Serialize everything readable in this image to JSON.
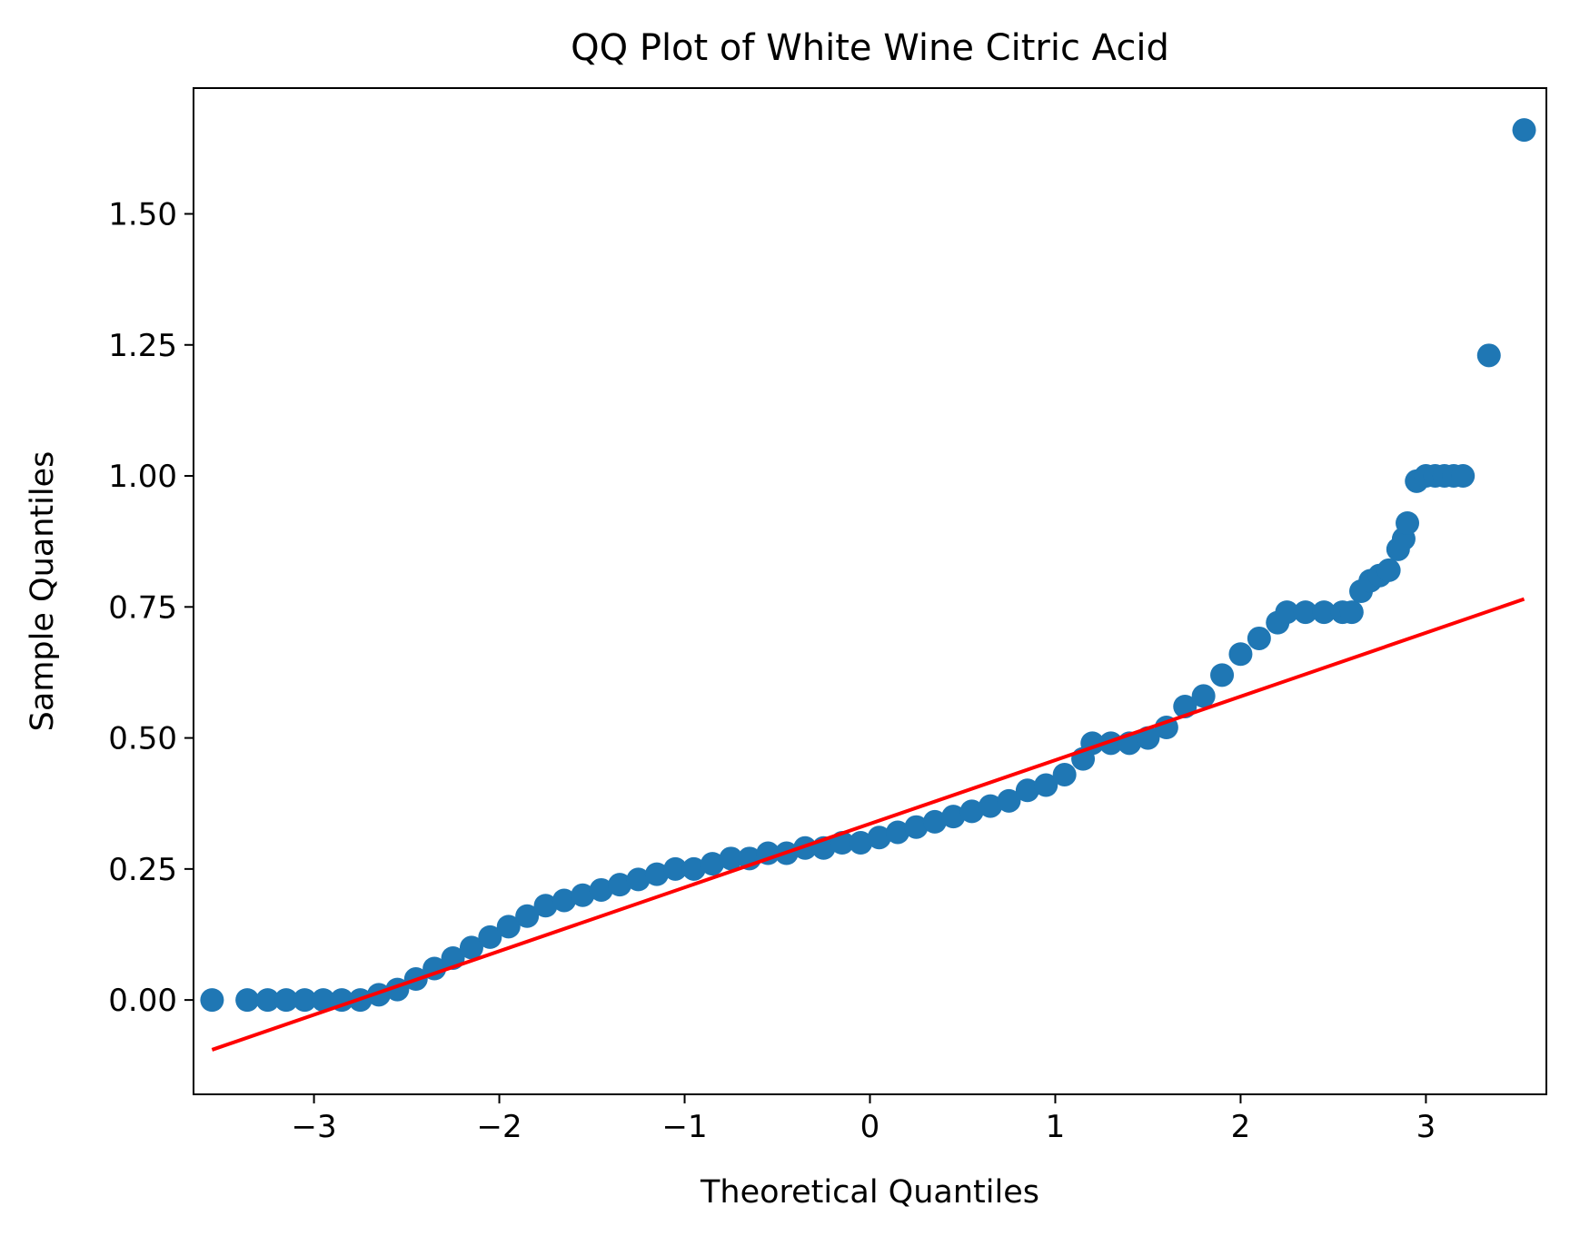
{
  "chart_data": {
    "type": "scatter",
    "title": "QQ Plot of White Wine Citric Acid",
    "xlabel": "Theoretical Quantiles",
    "ylabel": "Sample Quantiles",
    "xlim": [
      -3.65,
      3.65
    ],
    "ylim": [
      -0.18,
      1.74
    ],
    "xticks": [
      -3,
      -2,
      -1,
      0,
      1,
      2,
      3
    ],
    "xtick_labels": [
      "−3",
      "−2",
      "−1",
      "0",
      "1",
      "2",
      "3"
    ],
    "yticks": [
      0.0,
      0.25,
      0.5,
      0.75,
      1.0,
      1.25,
      1.5
    ],
    "ytick_labels": [
      "0.00",
      "0.25",
      "0.50",
      "0.75",
      "1.00",
      "1.25",
      "1.50"
    ],
    "grid": false,
    "series": [
      {
        "role": "sample",
        "color": "#1f77b4",
        "x": [
          -3.55,
          -3.36,
          -3.25,
          -3.15,
          -3.05,
          -2.95,
          -2.85,
          -2.75,
          -2.65,
          -2.55,
          -2.45,
          -2.35,
          -2.25,
          -2.15,
          -2.05,
          -1.95,
          -1.85,
          -1.75,
          -1.65,
          -1.55,
          -1.45,
          -1.35,
          -1.25,
          -1.15,
          -1.05,
          -0.95,
          -0.85,
          -0.75,
          -0.65,
          -0.55,
          -0.45,
          -0.35,
          -0.25,
          -0.15,
          -0.05,
          0.05,
          0.15,
          0.25,
          0.35,
          0.45,
          0.55,
          0.65,
          0.75,
          0.85,
          0.95,
          1.05,
          1.15,
          1.2,
          1.3,
          1.4,
          1.5,
          1.6,
          1.7,
          1.8,
          1.9,
          2.0,
          2.1,
          2.2,
          2.25,
          2.35,
          2.45,
          2.55,
          2.6,
          2.65,
          2.7,
          2.75,
          2.8,
          2.85,
          2.88,
          2.9,
          2.95,
          3.0,
          3.05,
          3.1,
          3.15,
          3.2,
          3.34,
          3.53
        ],
        "y": [
          0.0,
          0.0,
          0.0,
          0.0,
          0.0,
          0.0,
          0.0,
          0.0,
          0.01,
          0.02,
          0.04,
          0.06,
          0.08,
          0.1,
          0.12,
          0.14,
          0.16,
          0.18,
          0.19,
          0.2,
          0.21,
          0.22,
          0.23,
          0.24,
          0.25,
          0.25,
          0.26,
          0.27,
          0.27,
          0.28,
          0.28,
          0.29,
          0.29,
          0.3,
          0.3,
          0.31,
          0.32,
          0.33,
          0.34,
          0.35,
          0.36,
          0.37,
          0.38,
          0.4,
          0.41,
          0.43,
          0.46,
          0.49,
          0.49,
          0.49,
          0.5,
          0.52,
          0.56,
          0.58,
          0.62,
          0.66,
          0.69,
          0.72,
          0.74,
          0.74,
          0.74,
          0.74,
          0.74,
          0.78,
          0.8,
          0.81,
          0.82,
          0.86,
          0.88,
          0.91,
          0.99,
          1.0,
          1.0,
          1.0,
          1.0,
          1.0,
          1.23,
          1.66
        ]
      },
      {
        "role": "reference line",
        "type": "line",
        "color": "#ff0000",
        "x": [
          -3.55,
          3.53
        ],
        "y": [
          -0.095,
          0.765
        ]
      }
    ]
  }
}
